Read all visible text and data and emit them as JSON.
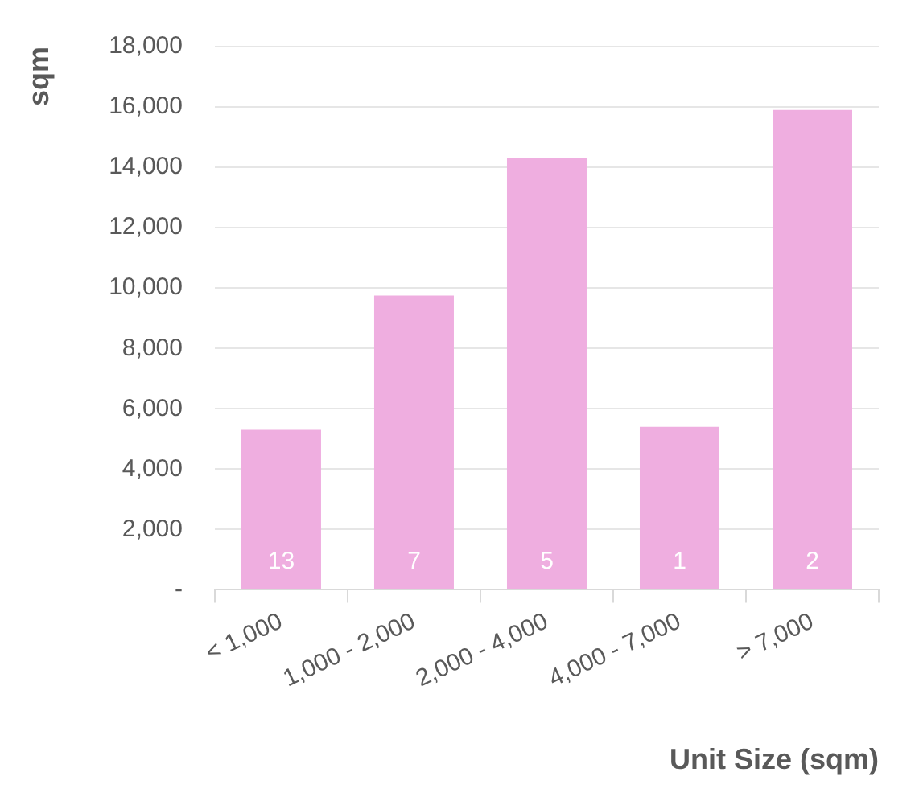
{
  "chart_data": {
    "type": "bar",
    "xlabel": "Unit Size (sqm)",
    "ylabel": "sqm",
    "categories": [
      "< 1,000",
      "1,000 - 2,000",
      "2,000 - 4,000",
      "4,000 - 7,000",
      "> 7,000"
    ],
    "values": [
      5300,
      9750,
      14300,
      5400,
      15900
    ],
    "color": "#efaee0",
    "ylim": [
      0,
      18000
    ],
    "yticks": [
      {
        "value": 0,
        "label": "-"
      },
      {
        "value": 2000,
        "label": "2,000"
      },
      {
        "value": 4000,
        "label": "4,000"
      },
      {
        "value": 6000,
        "label": "6,000"
      },
      {
        "value": 8000,
        "label": "8,000"
      },
      {
        "value": 10000,
        "label": "10,000"
      },
      {
        "value": 12000,
        "label": "12,000"
      },
      {
        "value": 14000,
        "label": "14,000"
      },
      {
        "value": 16000,
        "label": "16,000"
      },
      {
        "value": 18000,
        "label": "18,000"
      }
    ],
    "grid": "y",
    "annotations": [
      {
        "text": "13",
        "x": "< 1,000",
        "y": 0
      },
      {
        "text": "7",
        "x": "1,000 - 2,000",
        "y": 0
      },
      {
        "text": "5",
        "x": "2,000 - 4,000",
        "y": 0
      },
      {
        "text": "1",
        "x": "4,000 - 7,000",
        "y": 0
      },
      {
        "text": "2",
        "x": "> 7,000",
        "y": 0
      }
    ]
  }
}
